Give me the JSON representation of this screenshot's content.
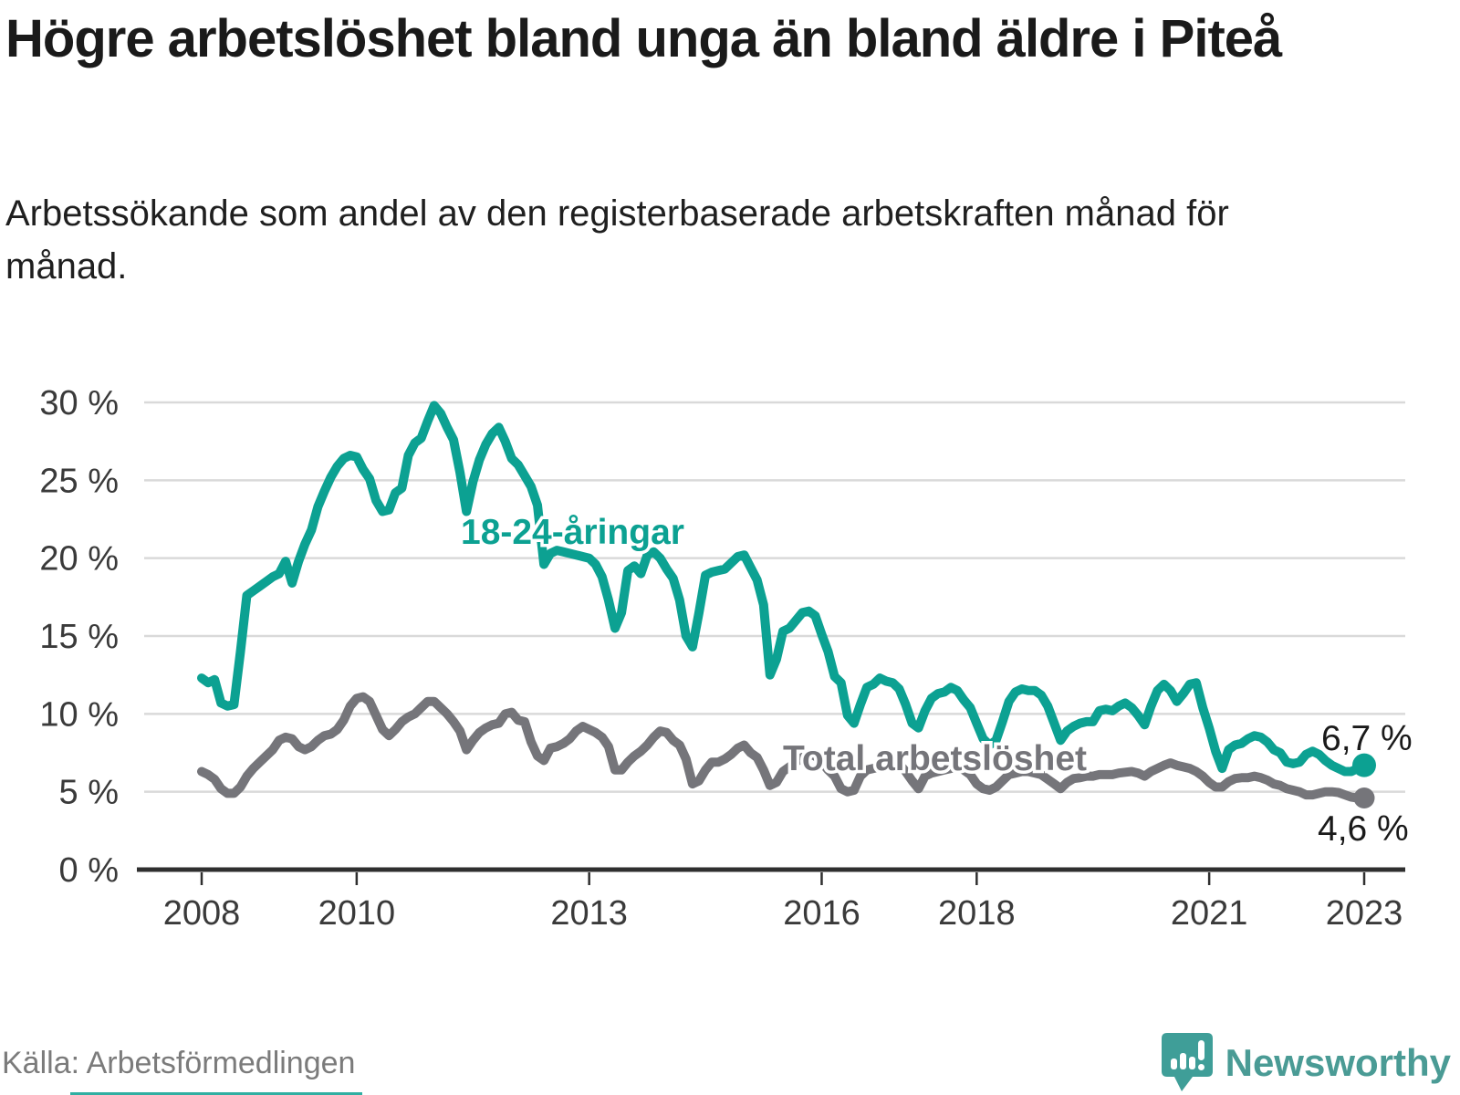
{
  "header": {
    "title": "Högre arbetslöshet bland unga än bland äldre i Piteå",
    "subtitle": "Arbetssökande som andel av den registerbaserade arbetskraften månad för månad."
  },
  "footer": {
    "source": "Källa: Arbetsförmedlingen",
    "brand_name": "Newsworthy",
    "brand_icon": "speech-bubble-bar-chart-icon"
  },
  "colors": {
    "youth_line": "#0ca192",
    "total_line": "#75757a",
    "grid": "#d9d9d9",
    "axis": "#2f2f2f",
    "text_dark": "#1a1a1a",
    "brand_teal": "#3f9e98"
  },
  "chart_data": {
    "type": "line",
    "x_unit": "month",
    "x_range": {
      "start": "2008-01",
      "end": "2023-01"
    },
    "x_tick_years": [
      "2008",
      "2010",
      "2013",
      "2016",
      "2018",
      "2021",
      "2023"
    ],
    "y_ticks": [
      "0 %",
      "5 %",
      "10 %",
      "15 %",
      "20 %",
      "25 %",
      "30 %"
    ],
    "ylim": [
      0,
      30
    ],
    "grid": true,
    "legend_position": "inline-labels",
    "series": [
      {
        "name": "18-24-åringar",
        "color": "#0ca192",
        "end_label": "6,7 %",
        "end_value": 6.7,
        "values": [
          12.3,
          12.0,
          12.2,
          10.7,
          10.5,
          10.6,
          14.0,
          17.6,
          17.9,
          18.2,
          18.5,
          18.8,
          19.0,
          19.8,
          18.4,
          19.8,
          20.9,
          21.8,
          23.3,
          24.3,
          25.2,
          25.9,
          26.4,
          26.6,
          26.5,
          25.7,
          25.1,
          23.7,
          23.0,
          23.1,
          24.2,
          24.5,
          26.6,
          27.4,
          27.7,
          28.8,
          29.8,
          29.3,
          28.4,
          27.6,
          25.5,
          23.0,
          24.9,
          26.3,
          27.3,
          28.0,
          28.4,
          27.5,
          26.4,
          26.0,
          25.3,
          24.6,
          23.4,
          19.6,
          20.3,
          20.5,
          20.4,
          20.3,
          20.2,
          20.1,
          20.0,
          19.6,
          18.8,
          17.3,
          15.5,
          16.5,
          19.2,
          19.5,
          19.0,
          20.2,
          20.4,
          20.0,
          19.3,
          18.7,
          17.3,
          15.0,
          14.3,
          16.5,
          18.9,
          19.1,
          19.2,
          19.3,
          19.7,
          20.1,
          20.2,
          19.4,
          18.6,
          17.0,
          12.5,
          13.5,
          15.3,
          15.5,
          16.0,
          16.5,
          16.6,
          16.3,
          15.1,
          14.0,
          12.4,
          12.0,
          9.9,
          9.4,
          10.6,
          11.7,
          11.9,
          12.3,
          12.1,
          12.0,
          11.6,
          10.6,
          9.4,
          9.1,
          10.2,
          11.0,
          11.3,
          11.4,
          11.7,
          11.5,
          10.9,
          10.4,
          9.4,
          8.4,
          8.0,
          8.3,
          9.5,
          10.8,
          11.4,
          11.6,
          11.5,
          11.5,
          11.2,
          10.5,
          9.4,
          8.3,
          8.9,
          9.2,
          9.4,
          9.5,
          9.5,
          10.2,
          10.3,
          10.2,
          10.5,
          10.7,
          10.4,
          9.9,
          9.3,
          10.5,
          11.5,
          11.9,
          11.5,
          10.8,
          11.3,
          11.9,
          12.0,
          10.4,
          9.1,
          7.6,
          6.5,
          7.7,
          8.0,
          8.1,
          8.4,
          8.6,
          8.5,
          8.2,
          7.7,
          7.5,
          6.9,
          6.8,
          6.9,
          7.4,
          7.6,
          7.4,
          7.0,
          6.7,
          6.5,
          6.3,
          6.3,
          6.5,
          6.7
        ]
      },
      {
        "name": "Total arbetslöshet",
        "color": "#75757a",
        "end_label": "4,6 %",
        "end_value": 4.6,
        "values": [
          6.3,
          6.1,
          5.8,
          5.2,
          4.9,
          4.9,
          5.3,
          6.0,
          6.5,
          6.9,
          7.3,
          7.7,
          8.3,
          8.5,
          8.4,
          7.9,
          7.7,
          7.9,
          8.3,
          8.6,
          8.7,
          9.0,
          9.6,
          10.5,
          11.0,
          11.1,
          10.8,
          9.9,
          9.0,
          8.6,
          9.0,
          9.5,
          9.8,
          10.0,
          10.4,
          10.8,
          10.8,
          10.4,
          10.0,
          9.5,
          8.9,
          7.7,
          8.3,
          8.8,
          9.1,
          9.3,
          9.4,
          10.0,
          10.1,
          9.6,
          9.5,
          8.2,
          7.3,
          7.0,
          7.8,
          7.9,
          8.1,
          8.4,
          8.9,
          9.2,
          9.0,
          8.8,
          8.5,
          7.9,
          6.4,
          6.4,
          6.9,
          7.3,
          7.6,
          8.0,
          8.5,
          8.9,
          8.8,
          8.3,
          8.0,
          7.1,
          5.5,
          5.7,
          6.4,
          6.9,
          6.9,
          7.1,
          7.4,
          7.8,
          8.0,
          7.5,
          7.2,
          6.4,
          5.4,
          5.6,
          6.3,
          6.6,
          6.9,
          7.2,
          7.4,
          7.3,
          6.9,
          6.4,
          6.0,
          5.2,
          5.0,
          5.1,
          6.0,
          6.4,
          6.5,
          6.6,
          6.7,
          6.7,
          6.8,
          6.3,
          5.7,
          5.2,
          6.0,
          6.2,
          6.3,
          6.4,
          6.5,
          6.6,
          6.4,
          6.1,
          5.5,
          5.2,
          5.1,
          5.3,
          5.7,
          6.1,
          6.2,
          6.3,
          6.3,
          6.2,
          6.1,
          5.8,
          5.5,
          5.2,
          5.6,
          5.85,
          5.9,
          6.0,
          6.0,
          6.1,
          6.1,
          6.1,
          6.2,
          6.25,
          6.3,
          6.2,
          6.0,
          6.3,
          6.5,
          6.7,
          6.85,
          6.7,
          6.6,
          6.5,
          6.3,
          6.0,
          5.6,
          5.3,
          5.3,
          5.65,
          5.85,
          5.9,
          5.9,
          6.0,
          5.9,
          5.75,
          5.5,
          5.4,
          5.2,
          5.1,
          5.0,
          4.8,
          4.8,
          4.9,
          5.0,
          5.0,
          4.95,
          4.8,
          4.65,
          4.6,
          4.6
        ]
      }
    ]
  }
}
